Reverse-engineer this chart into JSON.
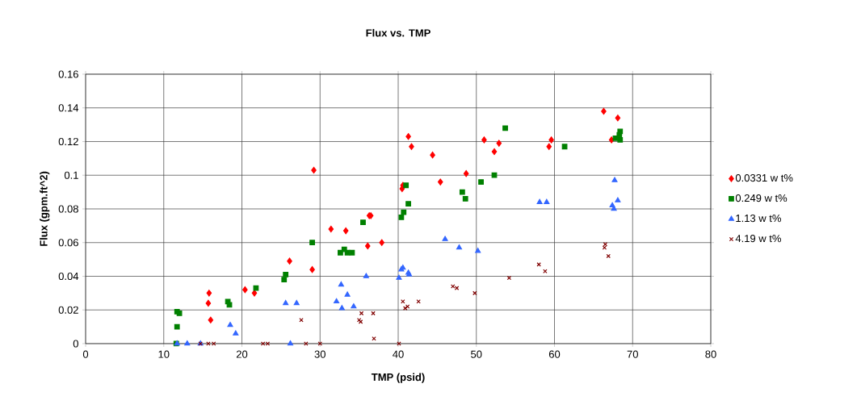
{
  "chart_data": {
    "type": "scatter",
    "title": "Flux vs. TMP",
    "xlabel": "TMP (psid)",
    "ylabel": "Flux (gpm.ft^2)",
    "xlim": [
      0,
      80
    ],
    "xticks": [
      0,
      10,
      20,
      30,
      40,
      50,
      60,
      70,
      80
    ],
    "ylim": [
      0,
      0.16
    ],
    "yticks": [
      0,
      0.02,
      0.04,
      0.06,
      0.08,
      0.1,
      0.12,
      0.14,
      0.16
    ],
    "grid": true,
    "legend": "right",
    "series": [
      {
        "name": "0.0331 w t%",
        "color": "#ff0000",
        "marker": "diamond",
        "x": [
          15.7,
          15.8,
          16.0,
          20.4,
          21.6,
          26.1,
          29.0,
          29.2,
          31.4,
          33.3,
          36.1,
          36.3,
          36.5,
          37.9,
          40.5,
          40.6,
          41.3,
          41.7,
          44.4,
          45.4,
          48.7,
          51.0,
          52.3,
          52.9,
          59.3,
          59.6,
          66.3,
          67.3,
          68.1
        ],
        "values": [
          0.024,
          0.03,
          0.014,
          0.032,
          0.03,
          0.049,
          0.044,
          0.103,
          0.068,
          0.067,
          0.058,
          0.076,
          0.076,
          0.06,
          0.092,
          0.094,
          0.123,
          0.117,
          0.112,
          0.096,
          0.101,
          0.121,
          0.114,
          0.119,
          0.117,
          0.121,
          0.138,
          0.121,
          0.134
        ]
      },
      {
        "name": "0.249 w t%",
        "color": "#008000",
        "marker": "square",
        "x": [
          11.6,
          11.7,
          11.7,
          12.0,
          18.2,
          18.4,
          21.8,
          25.4,
          25.6,
          29.0,
          32.6,
          33.1,
          33.5,
          34.1,
          35.5,
          40.4,
          40.7,
          41.0,
          41.3,
          48.2,
          48.6,
          50.6,
          52.3,
          53.7,
          61.3,
          67.8,
          68.3,
          68.4,
          68.4
        ],
        "values": [
          0.0,
          0.01,
          0.019,
          0.018,
          0.025,
          0.023,
          0.033,
          0.038,
          0.041,
          0.06,
          0.054,
          0.056,
          0.054,
          0.054,
          0.072,
          0.075,
          0.078,
          0.094,
          0.083,
          0.09,
          0.086,
          0.096,
          0.1,
          0.128,
          0.117,
          0.122,
          0.124,
          0.126,
          0.121
        ]
      },
      {
        "name": "1.13 w t%",
        "color": "#3366ff",
        "marker": "triangle",
        "x": [
          11.7,
          13.0,
          14.7,
          18.5,
          19.2,
          25.6,
          27.0,
          26.2,
          32.1,
          32.7,
          32.8,
          33.5,
          34.3,
          35.9,
          40.1,
          40.4,
          40.6,
          41.3,
          41.4,
          46.0,
          47.8,
          50.2,
          58.1,
          59.0,
          67.4,
          67.6,
          67.7,
          68.1
        ],
        "values": [
          0.0,
          0.0,
          0.0,
          0.011,
          0.006,
          0.024,
          0.024,
          0.0,
          0.025,
          0.035,
          0.021,
          0.029,
          0.022,
          0.04,
          0.039,
          0.044,
          0.045,
          0.042,
          0.041,
          0.062,
          0.057,
          0.055,
          0.084,
          0.084,
          0.082,
          0.08,
          0.097,
          0.085
        ]
      },
      {
        "name": "4.19 w t%",
        "color": "#800000",
        "marker": "cross",
        "x": [
          14.7,
          15.7,
          16.4,
          22.7,
          23.3,
          27.6,
          28.2,
          30.0,
          35.0,
          35.2,
          35.3,
          36.8,
          36.9,
          40.1,
          40.6,
          40.9,
          41.2,
          42.6,
          47.0,
          47.5,
          49.8,
          54.2,
          58.0,
          58.8,
          66.5,
          66.4,
          66.9
        ],
        "values": [
          0.0,
          0.0,
          0.0,
          0.0,
          0.0,
          0.014,
          0.0,
          0.0,
          0.014,
          0.013,
          0.018,
          0.018,
          0.003,
          0.0,
          0.025,
          0.021,
          0.022,
          0.025,
          0.034,
          0.033,
          0.03,
          0.039,
          0.047,
          0.043,
          0.059,
          0.057,
          0.052
        ]
      }
    ]
  }
}
